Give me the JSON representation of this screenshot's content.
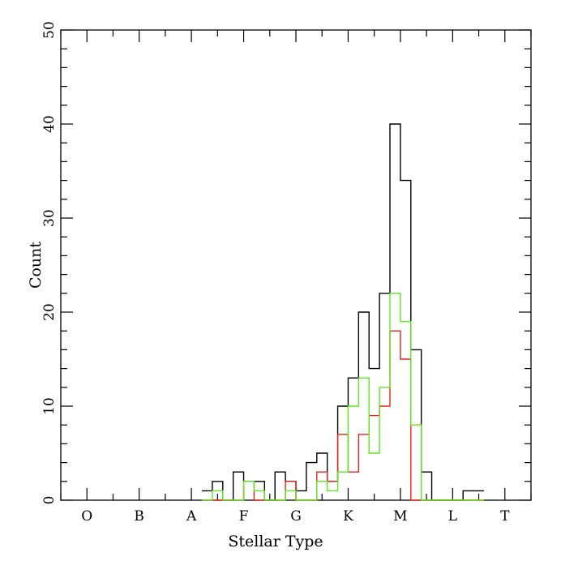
{
  "chart_data": {
    "type": "histogram-step",
    "xlabel": "Stellar Type",
    "ylabel": "Count",
    "xlim": [
      -0.5,
      8.5
    ],
    "ylim": [
      0,
      50
    ],
    "x_ticks": [
      {
        "label": "O",
        "value": 0
      },
      {
        "label": "B",
        "value": 1
      },
      {
        "label": "A",
        "value": 2
      },
      {
        "label": "F",
        "value": 3
      },
      {
        "label": "G",
        "value": 4
      },
      {
        "label": "K",
        "value": 5
      },
      {
        "label": "M",
        "value": 6
      },
      {
        "label": "L",
        "value": 7
      },
      {
        "label": "T",
        "value": 8
      }
    ],
    "x_minor_step": 0.5,
    "y_ticks": [
      0,
      10,
      20,
      30,
      40,
      50
    ],
    "y_minor_step": 2,
    "bin_width": 0.2,
    "bin_start": 2.2,
    "series": [
      {
        "color": "#000000",
        "values": [
          1,
          2,
          0,
          3,
          2,
          2,
          0,
          3,
          2,
          1,
          4,
          5,
          2,
          10,
          13,
          20,
          14,
          22,
          40,
          34,
          16,
          3,
          0,
          0,
          0,
          1,
          1
        ]
      },
      {
        "color": "#e8231c",
        "values": [
          0,
          0,
          0,
          0,
          2,
          0,
          0,
          0,
          2,
          0,
          0,
          3,
          2,
          7,
          3,
          7,
          9,
          10,
          18,
          15,
          0,
          0,
          0,
          0,
          0,
          0,
          0
        ]
      },
      {
        "color": "#5ee822",
        "values": [
          0,
          1,
          0,
          0,
          2,
          1,
          0,
          0,
          1,
          0,
          0,
          2,
          1,
          3,
          10,
          13,
          5,
          12,
          22,
          19,
          8,
          0,
          0,
          0,
          0,
          0,
          0
        ]
      }
    ]
  }
}
